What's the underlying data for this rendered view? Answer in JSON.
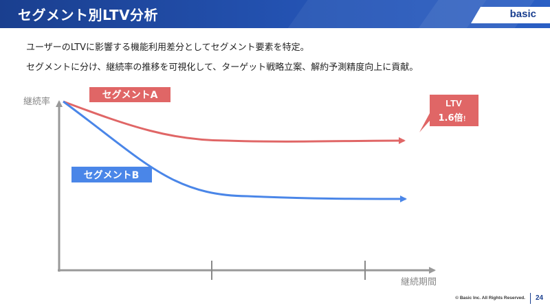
{
  "slide": {
    "title": "セグメント別LTV分析",
    "brand": "basic",
    "lines": [
      "ユーザーのLTVに影響する機能利用差分としてセグメント要素を特定。",
      "セグメントに分け、継続率の推移を可視化して、ターゲット戦略立案、解約予測精度向上に貢献。"
    ],
    "footer": "© Basic Inc. All Rights Reserved.",
    "page": "24"
  },
  "diagram": {
    "y_label": "継続率",
    "x_label": "継続期間",
    "segment_a": {
      "label": "セグメントA",
      "color": "#e06666"
    },
    "segment_b": {
      "label": "セグメントB",
      "color": "#4a86e8"
    },
    "callout": {
      "line1": "LTV",
      "line2_value": "1.6倍",
      "line2_suffix": "！",
      "color": "#e06666"
    },
    "axis_color": "#999999"
  }
}
